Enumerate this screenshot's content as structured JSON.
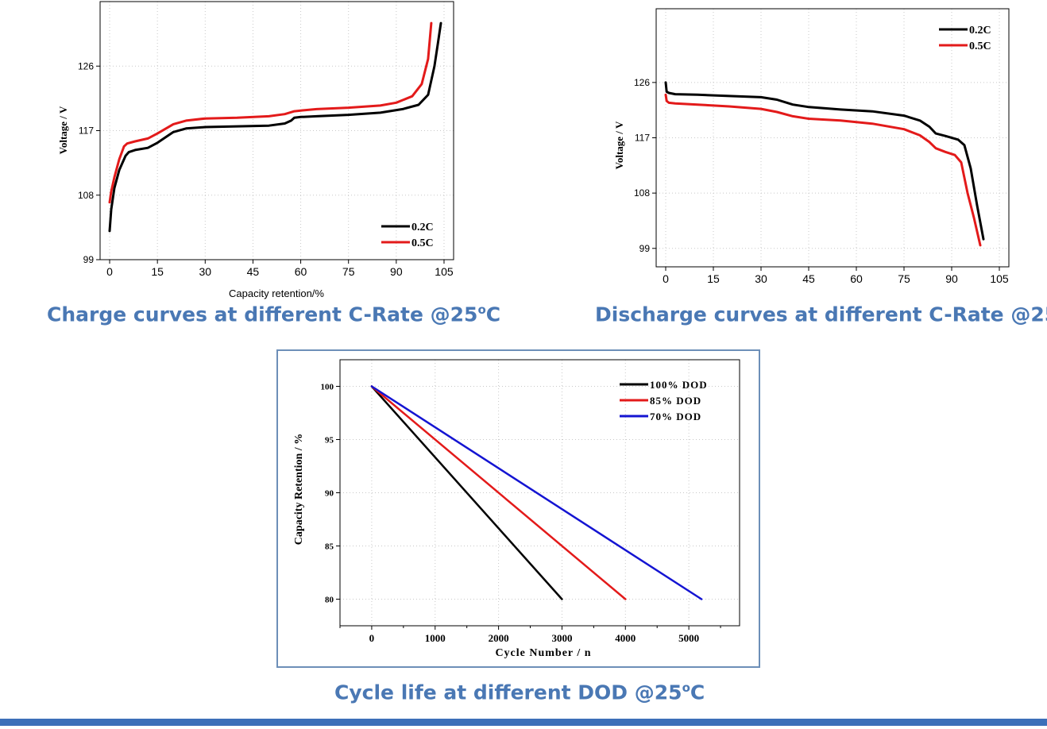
{
  "charts": [
    {
      "id": "charge",
      "caption": "Charge curves at different C-Rate @25",
      "caption_unit": "C",
      "chart_data": {
        "type": "line",
        "xlabel": "Capacity retention/%",
        "ylabel": "Voltage / V",
        "xlim": [
          -3,
          108
        ],
        "ylim": [
          99,
          135
        ],
        "xticks": [
          0,
          15,
          30,
          45,
          60,
          75,
          90,
          105
        ],
        "yticks": [
          99,
          108,
          117,
          126
        ],
        "grid": true,
        "legend": "bottom-right",
        "series": [
          {
            "name": "0.2C",
            "color": "#000000",
            "x": [
              0,
              0.5,
              1.5,
              3,
              5,
              6,
              8,
              12,
              15,
              20,
              24,
              30,
              40,
              50,
              55,
              57,
              58,
              60,
              65,
              75,
              85,
              92,
              97,
              100,
              102,
              103,
              104
            ],
            "y": [
              103,
              106,
              109,
              111.5,
              113.5,
              114,
              114.3,
              114.6,
              115.3,
              116.8,
              117.3,
              117.5,
              117.6,
              117.7,
              118,
              118.4,
              118.8,
              118.9,
              119,
              119.2,
              119.5,
              120,
              120.6,
              122,
              126,
              129,
              132
            ]
          },
          {
            "name": "0.5C",
            "color": "#e31a1a",
            "x": [
              0,
              0.5,
              1.5,
              3,
              4.5,
              5.5,
              8,
              12,
              15,
              20,
              24,
              30,
              40,
              50,
              55,
              58,
              60,
              65,
              75,
              85,
              90,
              95,
              98,
              100,
              101
            ],
            "y": [
              107,
              108.5,
              110.5,
              113,
              114.8,
              115.2,
              115.5,
              115.9,
              116.6,
              117.9,
              118.4,
              118.7,
              118.8,
              119,
              119.3,
              119.7,
              119.8,
              120,
              120.2,
              120.5,
              120.9,
              121.8,
              123.5,
              127,
              132
            ]
          }
        ]
      }
    },
    {
      "id": "discharge",
      "caption": "Discharge curves at different C-Rate @25",
      "caption_unit": "C",
      "chart_data": {
        "type": "line",
        "xlabel": "",
        "ylabel": "Voltage / V",
        "xlim": [
          -3,
          108
        ],
        "ylim": [
          96,
          138
        ],
        "xticks": [
          0,
          15,
          30,
          45,
          60,
          75,
          90,
          105
        ],
        "yticks": [
          99,
          108,
          117,
          126
        ],
        "grid": true,
        "legend": "top-right",
        "series": [
          {
            "name": "0.2C",
            "color": "#000000",
            "x": [
              0,
              0.3,
              1,
              3,
              10,
              20,
              30,
              35,
              40,
              45,
              55,
              65,
              75,
              80,
              83,
              85,
              88,
              92,
              94,
              96,
              98,
              100
            ],
            "y": [
              126,
              124.5,
              124.3,
              124.1,
              124,
              123.8,
              123.6,
              123.2,
              122.4,
              122,
              121.6,
              121.3,
              120.6,
              119.8,
              118.8,
              117.7,
              117.3,
              116.7,
              115.8,
              112,
              106,
              100.5
            ]
          },
          {
            "name": "0.5C",
            "color": "#e31a1a",
            "x": [
              0,
              0.3,
              1,
              3,
              10,
              20,
              30,
              35,
              40,
              45,
              55,
              65,
              75,
              80,
              83,
              85,
              88,
              91,
              93,
              95,
              97,
              99
            ],
            "y": [
              124,
              123,
              122.7,
              122.6,
              122.4,
              122.1,
              121.7,
              121.2,
              120.5,
              120.1,
              119.8,
              119.3,
              118.4,
              117.4,
              116.3,
              115.3,
              114.7,
              114.2,
              113,
              108,
              104,
              99.5
            ]
          }
        ]
      }
    },
    {
      "id": "cycle",
      "caption": "Cycle life at different DOD @25",
      "caption_unit": "C",
      "chart_data": {
        "type": "line",
        "xlabel": "Cycle Number / n",
        "ylabel": "Capacity Retention / %",
        "xlim": [
          -500,
          5800
        ],
        "ylim": [
          77.5,
          102.5
        ],
        "xticks": [
          0,
          1000,
          2000,
          3000,
          4000,
          5000
        ],
        "yticks": [
          80,
          85,
          90,
          95,
          100
        ],
        "grid": true,
        "legend": "top-right",
        "series": [
          {
            "name": "100% DOD",
            "color": "#000000",
            "x": [
              0,
              3000
            ],
            "y": [
              100,
              80
            ]
          },
          {
            "name": "85% DOD",
            "color": "#e31a1a",
            "x": [
              0,
              4000
            ],
            "y": [
              100,
              80
            ]
          },
          {
            "name": "70% DOD",
            "color": "#1414d2",
            "x": [
              0,
              5200
            ],
            "y": [
              100,
              80
            ]
          }
        ]
      }
    }
  ]
}
